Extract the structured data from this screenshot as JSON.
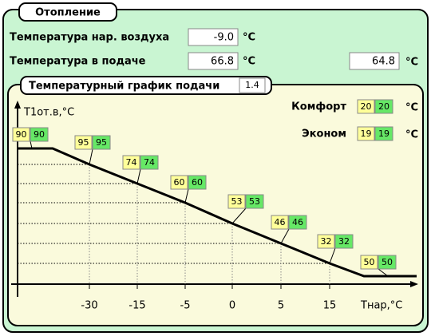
{
  "header": {
    "title": "Отопление"
  },
  "rows": [
    {
      "label": "Температура нар. воздуха",
      "value": "-9.0",
      "unit": "°C"
    },
    {
      "label": "Температура в подаче",
      "value": "66.8",
      "unit": "°C",
      "value2": "64.8",
      "unit2": "°C"
    }
  ],
  "graph": {
    "title": "Температурный график подачи",
    "factor": "1.4",
    "y_label": "T1от.в,°C",
    "x_label": "Tнар,°C",
    "x_ticks": [
      "-30",
      "-15",
      "-5",
      "0",
      "5",
      "15"
    ],
    "modes": [
      {
        "label": "Комфорт",
        "values": [
          "20",
          "20"
        ],
        "unit": "°C"
      },
      {
        "label": "Эконом",
        "values": [
          "19",
          "19"
        ],
        "unit": "°C"
      }
    ],
    "points": [
      [
        "90",
        "90"
      ],
      [
        "95",
        "95"
      ],
      [
        "74",
        "74"
      ],
      [
        "60",
        "60"
      ],
      [
        "53",
        "53"
      ],
      [
        "46",
        "46"
      ],
      [
        "32",
        "32"
      ],
      [
        "50",
        "50"
      ]
    ]
  }
}
